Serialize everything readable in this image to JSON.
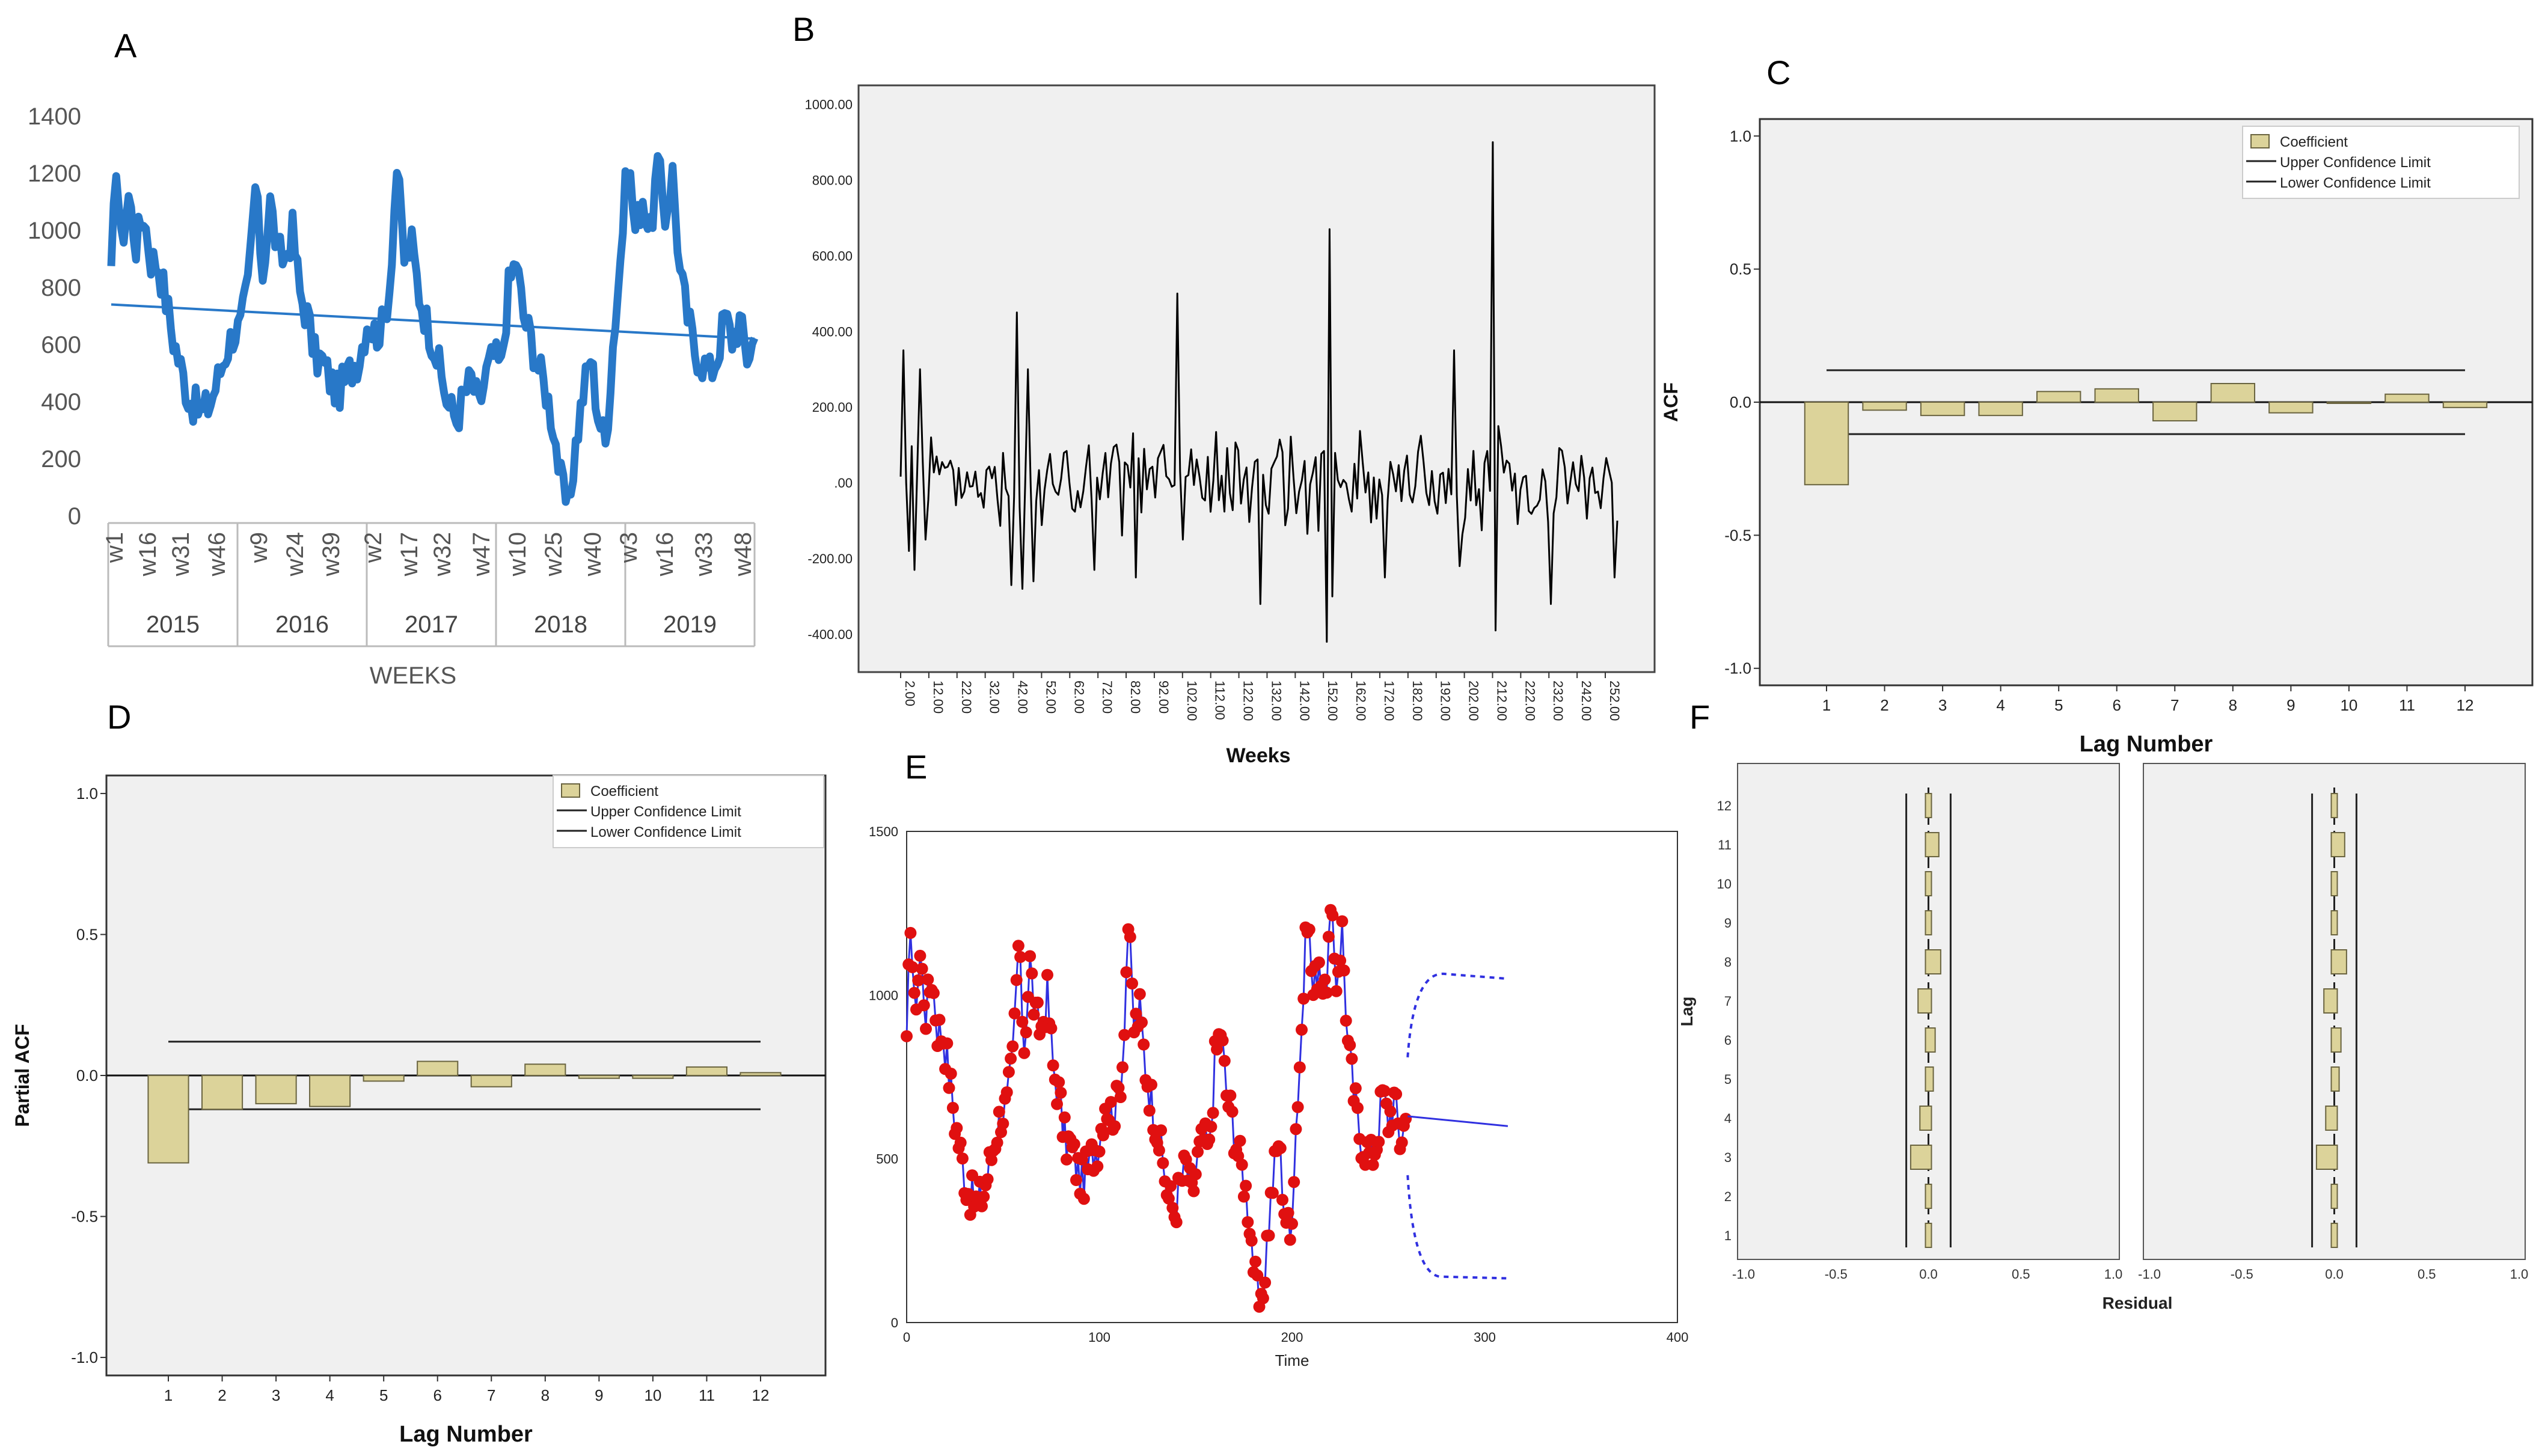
{
  "colors": {
    "panel_bg": "#f0f0f0",
    "blue_line": "#2878c8",
    "trend_line": "#2878c8",
    "black_line": "#000000",
    "bar_fill": "#dcd39a",
    "bar_stroke": "#6a6440",
    "red_point": "#e01010",
    "forecast_blue": "#3030e0"
  },
  "panels": {
    "A": {
      "letter": "A"
    },
    "B": {
      "letter": "B"
    },
    "C": {
      "letter": "C"
    },
    "D": {
      "letter": "D"
    },
    "E": {
      "letter": "E"
    },
    "F": {
      "letter": "F"
    }
  },
  "chart_data": [
    {
      "panel": "A",
      "type": "line",
      "title": "",
      "xlabel": "WEEKS",
      "ylabel": "",
      "ylim": [
        0,
        1400
      ],
      "yticks": [
        "0",
        "200",
        "400",
        "600",
        "800",
        "1000",
        "1200",
        "1400"
      ],
      "week_labels": [
        "w1",
        "w16",
        "w31",
        "w46",
        "w9",
        "w24",
        "w39",
        "w2",
        "w17",
        "w32",
        "w47",
        "w10",
        "w25",
        "w40",
        "w3",
        "w16",
        "w33",
        "w48"
      ],
      "year_labels": [
        "2015",
        "2016",
        "2017",
        "2018",
        "2019"
      ],
      "n_points": 260,
      "control_points": [
        [
          0,
          820
        ],
        [
          2,
          1250
        ],
        [
          4,
          950
        ],
        [
          7,
          1120
        ],
        [
          10,
          950
        ],
        [
          13,
          1060
        ],
        [
          16,
          900
        ],
        [
          19,
          880
        ],
        [
          22,
          760
        ],
        [
          25,
          620
        ],
        [
          28,
          520
        ],
        [
          31,
          420
        ],
        [
          34,
          380
        ],
        [
          37,
          360
        ],
        [
          40,
          400
        ],
        [
          43,
          480
        ],
        [
          46,
          570
        ],
        [
          49,
          640
        ],
        [
          52,
          660
        ],
        [
          55,
          800
        ],
        [
          58,
          1150
        ],
        [
          61,
          850
        ],
        [
          64,
          1100
        ],
        [
          67,
          920
        ],
        [
          70,
          900
        ],
        [
          73,
          1000
        ],
        [
          76,
          780
        ],
        [
          79,
          700
        ],
        [
          82,
          560
        ],
        [
          85,
          540
        ],
        [
          88,
          480
        ],
        [
          91,
          430
        ],
        [
          94,
          470
        ],
        [
          97,
          520
        ],
        [
          100,
          560
        ],
        [
          103,
          680
        ],
        [
          106,
          640
        ],
        [
          109,
          660
        ],
        [
          112,
          800
        ],
        [
          115,
          1220
        ],
        [
          118,
          900
        ],
        [
          121,
          950
        ],
        [
          124,
          780
        ],
        [
          127,
          680
        ],
        [
          130,
          600
        ],
        [
          133,
          480
        ],
        [
          136,
          380
        ],
        [
          139,
          340
        ],
        [
          142,
          420
        ],
        [
          145,
          480
        ],
        [
          148,
          380
        ],
        [
          151,
          500
        ],
        [
          154,
          560
        ],
        [
          157,
          520
        ],
        [
          160,
          800
        ],
        [
          163,
          900
        ],
        [
          166,
          700
        ],
        [
          169,
          620
        ],
        [
          172,
          520
        ],
        [
          175,
          440
        ],
        [
          178,
          320
        ],
        [
          181,
          120
        ],
        [
          184,
          20
        ],
        [
          187,
          250
        ],
        [
          190,
          430
        ],
        [
          193,
          560
        ],
        [
          196,
          360
        ],
        [
          199,
          250
        ],
        [
          202,
          600
        ],
        [
          205,
          900
        ],
        [
          208,
          1260
        ],
        [
          211,
          1000
        ],
        [
          214,
          1120
        ],
        [
          217,
          980
        ],
        [
          220,
          1240
        ],
        [
          223,
          1050
        ],
        [
          226,
          1200
        ],
        [
          229,
          850
        ],
        [
          232,
          700
        ],
        [
          235,
          580
        ],
        [
          238,
          540
        ],
        [
          241,
          500
        ],
        [
          244,
          560
        ],
        [
          247,
          700
        ],
        [
          250,
          620
        ],
        [
          253,
          680
        ],
        [
          256,
          560
        ],
        [
          259,
          620
        ]
      ],
      "trend": {
        "start": 740,
        "end": 620
      }
    },
    {
      "panel": "B",
      "type": "line",
      "xlabel": "Weeks",
      "ylim": [
        -500,
        1050
      ],
      "yticks": [
        "-400.00",
        "-200.00",
        ".00",
        "200.00",
        "400.00",
        "600.00",
        "800.00",
        "1000.00"
      ],
      "xticks": [
        "2.00",
        "12.00",
        "22.00",
        "32.00",
        "42.00",
        "52.00",
        "62.00",
        "72.00",
        "82.00",
        "92.00",
        "102.00",
        "112.00",
        "122.00",
        "132.00",
        "142.00",
        "152.00",
        "162.00",
        "172.00",
        "182.00",
        "192.00",
        "202.00",
        "212.00",
        "222.00",
        "232.00",
        "242.00",
        "252.00"
      ],
      "n_points": 260,
      "spikes": [
        [
          1,
          350
        ],
        [
          3,
          -180
        ],
        [
          5,
          -230
        ],
        [
          7,
          300
        ],
        [
          9,
          -150
        ],
        [
          11,
          120
        ],
        [
          40,
          -270
        ],
        [
          42,
          450
        ],
        [
          44,
          -280
        ],
        [
          46,
          300
        ],
        [
          48,
          -260
        ],
        [
          70,
          -230
        ],
        [
          85,
          -250
        ],
        [
          100,
          500
        ],
        [
          102,
          -150
        ],
        [
          130,
          -320
        ],
        [
          154,
          -420
        ],
        [
          155,
          670
        ],
        [
          156,
          -300
        ],
        [
          175,
          -250
        ],
        [
          200,
          350
        ],
        [
          202,
          -220
        ],
        [
          214,
          900
        ],
        [
          215,
          -390
        ],
        [
          216,
          150
        ],
        [
          235,
          -320
        ],
        [
          258,
          -250
        ]
      ]
    },
    {
      "panel": "C",
      "type": "bar",
      "xlabel": "Lag Number",
      "ylabel": "ACF",
      "ylim": [
        -1.0,
        1.0
      ],
      "yticks": [
        "-1.0",
        "-0.5",
        "0.0",
        "0.5",
        "1.0"
      ],
      "categories": [
        "1",
        "2",
        "3",
        "4",
        "5",
        "6",
        "7",
        "8",
        "9",
        "10",
        "11",
        "12"
      ],
      "values": [
        -0.31,
        -0.03,
        -0.05,
        -0.05,
        0.04,
        0.05,
        -0.07,
        0.07,
        -0.04,
        0.0,
        0.03,
        -0.02
      ],
      "upper_limit": 0.12,
      "lower_limit": -0.12,
      "legend": [
        "Coefficient",
        "Upper Confidence Limit",
        "Lower Confidence Limit"
      ]
    },
    {
      "panel": "D",
      "type": "bar",
      "xlabel": "Lag Number",
      "ylabel": "Partial ACF",
      "ylim": [
        -1.0,
        1.0
      ],
      "yticks": [
        "-1.0",
        "-0.5",
        "0.0",
        "0.5",
        "1.0"
      ],
      "categories": [
        "1",
        "2",
        "3",
        "4",
        "5",
        "6",
        "7",
        "8",
        "9",
        "10",
        "11",
        "12"
      ],
      "values": [
        -0.31,
        -0.12,
        -0.1,
        -0.11,
        -0.02,
        0.05,
        -0.04,
        0.04,
        -0.01,
        -0.01,
        0.03,
        0.01
      ],
      "upper_limit": 0.12,
      "lower_limit": -0.12,
      "legend": [
        "Coefficient",
        "Upper Confidence Limit",
        "Lower Confidence Limit"
      ]
    },
    {
      "panel": "E",
      "type": "line",
      "xlabel": "Time",
      "ylim": [
        0,
        1500
      ],
      "xlim": [
        0,
        400
      ],
      "yticks": [
        "0",
        "500",
        "1000",
        "1500"
      ],
      "xticks": [
        "0",
        "100",
        "200",
        "300",
        "400"
      ],
      "forecast": {
        "start_x": 260,
        "end_x": 312,
        "start_y": 630,
        "end_y": 600,
        "upper": 1070,
        "lower": 130
      }
    },
    {
      "panel": "F",
      "type": "bar",
      "xlabel": "Residual",
      "ylabel": "Lag",
      "xlim": [
        -1.0,
        1.0
      ],
      "xticks": [
        "-1.0",
        "-0.5",
        "0.0",
        "0.5",
        "1.0"
      ],
      "yticks": [
        "1",
        "2",
        "3",
        "4",
        "5",
        "6",
        "7",
        "8",
        "9",
        "10",
        "11",
        "12"
      ],
      "left_values": [
        0.0,
        0.0,
        -0.08,
        -0.03,
        0.01,
        0.02,
        -0.04,
        0.05,
        0.0,
        0.0,
        0.04,
        0.0
      ],
      "right_values": [
        0.0,
        0.0,
        -0.08,
        -0.03,
        0.01,
        0.02,
        -0.04,
        0.05,
        0.0,
        0.0,
        0.04,
        0.0
      ],
      "limits": [
        -0.12,
        0.12
      ]
    }
  ]
}
